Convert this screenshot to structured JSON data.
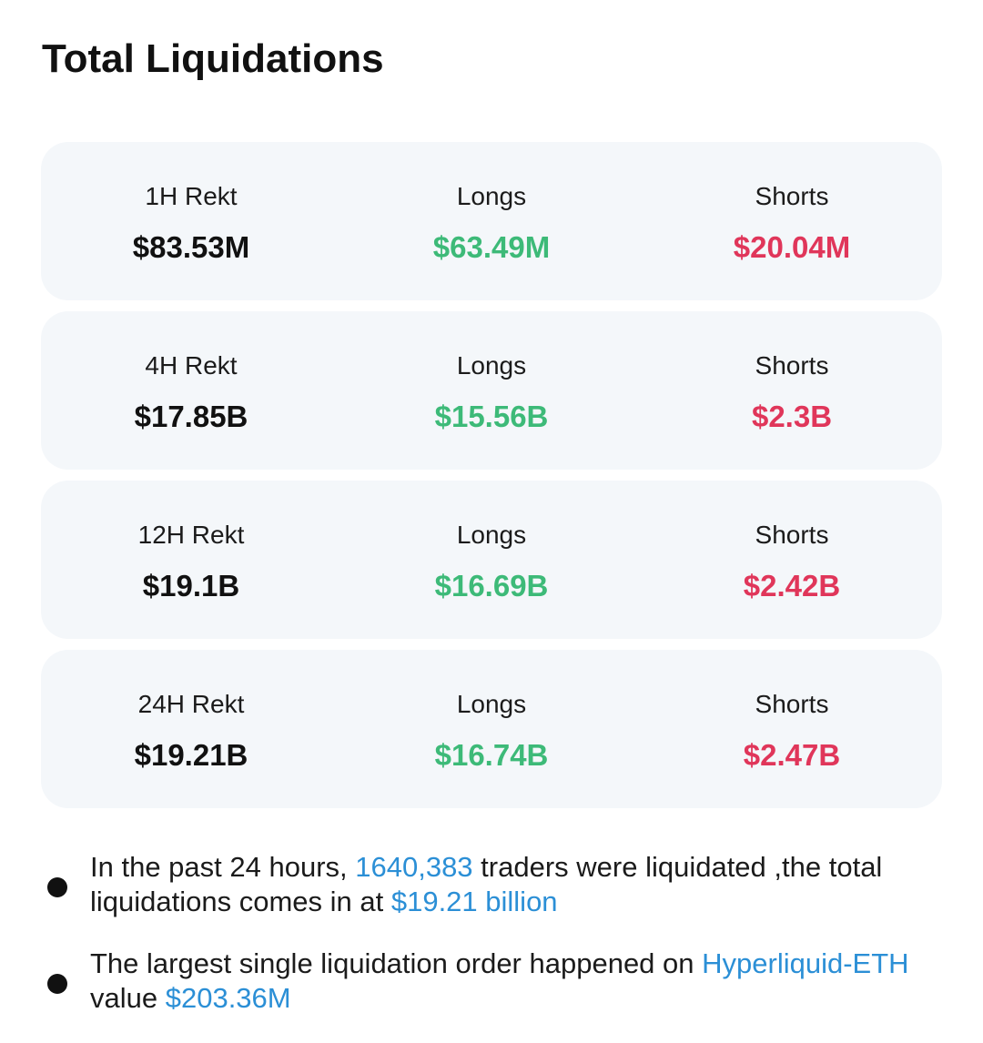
{
  "page": {
    "title": "Total Liquidations"
  },
  "colors": {
    "long": "#3dba78",
    "short": "#e0365a",
    "highlight": "#2b8fd6",
    "card_bg": "#f4f7fa"
  },
  "cards": [
    {
      "total_label": "1H Rekt",
      "total_value": "$83.53M",
      "longs_label": "Longs",
      "longs_value": "$63.49M",
      "shorts_label": "Shorts",
      "shorts_value": "$20.04M"
    },
    {
      "total_label": "4H Rekt",
      "total_value": "$17.85B",
      "longs_label": "Longs",
      "longs_value": "$15.56B",
      "shorts_label": "Shorts",
      "shorts_value": "$2.3B"
    },
    {
      "total_label": "12H Rekt",
      "total_value": "$19.1B",
      "longs_label": "Longs",
      "longs_value": "$16.69B",
      "shorts_label": "Shorts",
      "shorts_value": "$2.42B"
    },
    {
      "total_label": "24H Rekt",
      "total_value": "$19.21B",
      "longs_label": "Longs",
      "longs_value": "$16.74B",
      "shorts_label": "Shorts",
      "shorts_value": "$2.47B"
    }
  ],
  "notes": {
    "n1": {
      "part1": "In the past 24 hours, ",
      "traders_count": "1640,383",
      "part2": " traders were liquidated ,the total liquidations comes in at ",
      "total_amount": "$19.21 billion"
    },
    "n2": {
      "part1": "The largest single liquidation order happened on ",
      "exchange_pair": "Hyperliquid-ETH",
      "part2": " value ",
      "order_value": "$203.36M"
    }
  }
}
